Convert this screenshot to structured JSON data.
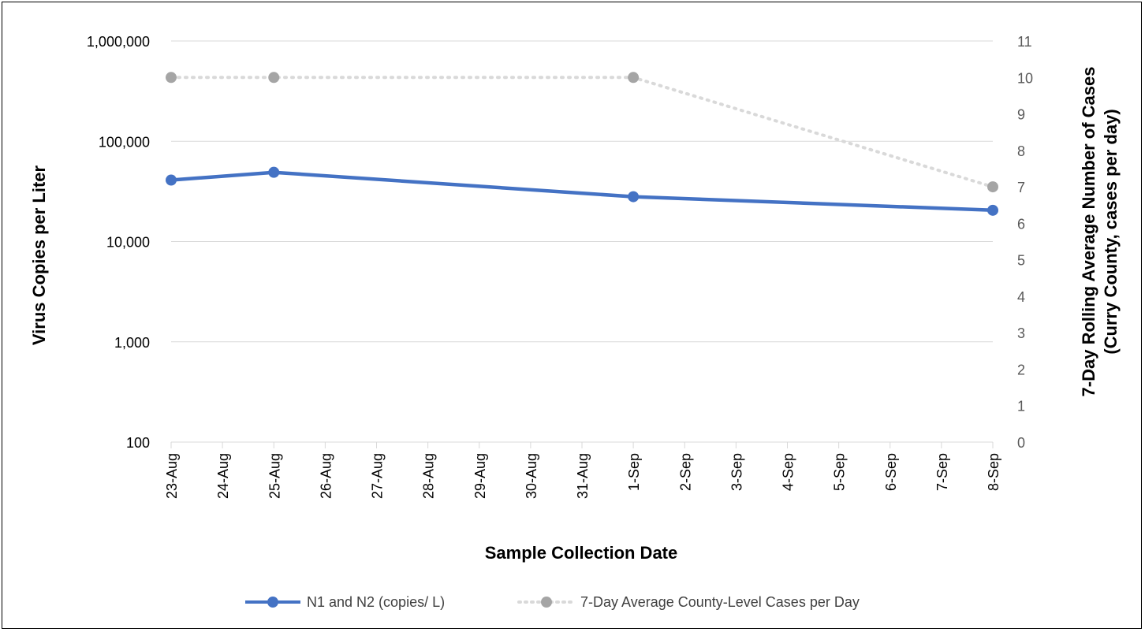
{
  "chart_data": {
    "type": "line",
    "title": "",
    "xlabel": "Sample Collection Date",
    "ylabel": "Virus Copies per Liter",
    "y2label_line1": "7-Day Rolling Average Number of Cases",
    "y2label_line2": "(Curry County, cases per day)",
    "x_categories": [
      "23-Aug",
      "24-Aug",
      "25-Aug",
      "26-Aug",
      "27-Aug",
      "28-Aug",
      "29-Aug",
      "30-Aug",
      "31-Aug",
      "1-Sep",
      "2-Sep",
      "3-Sep",
      "4-Sep",
      "5-Sep",
      "6-Sep",
      "7-Sep",
      "8-Sep"
    ],
    "y_axis": {
      "scale": "log",
      "min": 100,
      "max": 1000000,
      "ticks": [
        100,
        1000,
        10000,
        100000,
        1000000
      ],
      "tick_labels": [
        "100",
        "1,000",
        "10,000",
        "100,000",
        "1,000,000"
      ]
    },
    "y2_axis": {
      "scale": "linear",
      "min": 0,
      "max": 11,
      "ticks": [
        0,
        1,
        2,
        3,
        4,
        5,
        6,
        7,
        8,
        9,
        10,
        11
      ],
      "tick_labels": [
        "0",
        "1",
        "2",
        "3",
        "4",
        "5",
        "6",
        "7",
        "8",
        "9",
        "10",
        "11"
      ]
    },
    "series": [
      {
        "name": "N1 and N2 (copies/ L)",
        "axis": "left",
        "color": "#4472C4",
        "style": "solid",
        "points": [
          {
            "x": "23-Aug",
            "y": 41000
          },
          {
            "x": "25-Aug",
            "y": 49000
          },
          {
            "x": "1-Sep",
            "y": 28000
          },
          {
            "x": "8-Sep",
            "y": 20500
          }
        ]
      },
      {
        "name": "7-Day Average County-Level Cases per Day",
        "axis": "right",
        "color": "#A5A5A5",
        "style": "dotted",
        "points": [
          {
            "x": "23-Aug",
            "y": 10
          },
          {
            "x": "25-Aug",
            "y": 10
          },
          {
            "x": "1-Sep",
            "y": 10
          },
          {
            "x": "8-Sep",
            "y": 7
          }
        ]
      }
    ],
    "legend_position": "bottom",
    "grid": {
      "horizontal": true,
      "vertical": false
    }
  }
}
